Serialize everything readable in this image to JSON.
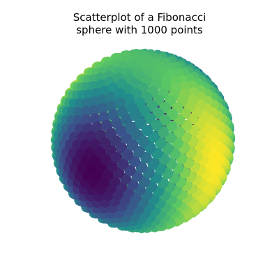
{
  "chart_data": {
    "type": "scatter",
    "projection": "3d",
    "title_lines": [
      "Scatterplot of a Fibonacci",
      "sphere with 1000 points"
    ],
    "n_points": 1000,
    "point_layout": "fibonacci-sphere",
    "xlim": [
      -1,
      1
    ],
    "ylim": [
      -1,
      1
    ],
    "zlim": [
      -1,
      1
    ],
    "axes_visible": false,
    "grid": false,
    "legend": "none",
    "colormap": "viridis",
    "colormap_stops": [
      "#440154",
      "#3b528b",
      "#21918c",
      "#5ec962",
      "#fde725"
    ]
  }
}
